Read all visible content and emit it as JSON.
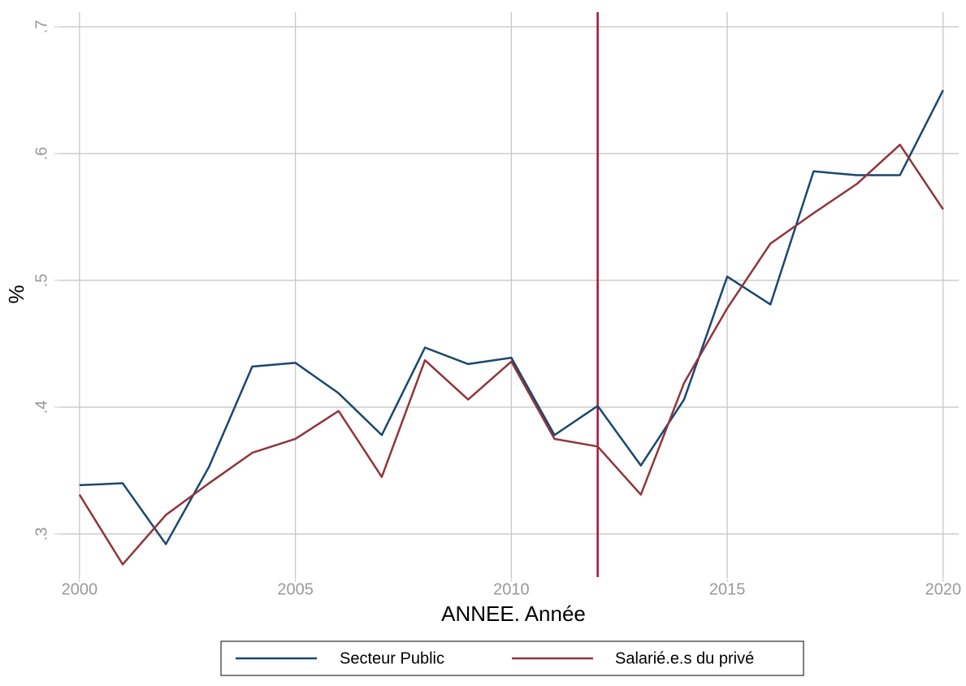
{
  "chart_data": {
    "type": "line",
    "x_label": "ANNEE. Année",
    "y_label": "%",
    "x": [
      2000,
      2001,
      2002,
      2003,
      2004,
      2005,
      2006,
      2007,
      2008,
      2009,
      2010,
      2011,
      2012,
      2013,
      2014,
      2015,
      2016,
      2017,
      2018,
      2019,
      2020
    ],
    "series": [
      {
        "name": "Secteur Public",
        "color": "#1a476f",
        "values": [
          0.3385,
          0.34,
          0.292,
          0.353,
          0.432,
          0.435,
          0.411,
          0.378,
          0.447,
          0.434,
          0.439,
          0.378,
          0.401,
          0.354,
          0.406,
          0.503,
          0.481,
          0.586,
          0.583,
          0.583,
          0.65
        ]
      },
      {
        "name": "Salarié.e.s du privé",
        "color": "#90353b",
        "values": [
          0.331,
          0.276,
          0.315,
          0.34,
          0.364,
          0.375,
          0.397,
          0.345,
          0.437,
          0.406,
          0.436,
          0.375,
          0.369,
          0.331,
          0.419,
          0.478,
          0.529,
          0.553,
          0.576,
          0.607,
          0.556
        ]
      }
    ],
    "vline": {
      "value": 2012,
      "color": "#a3123d"
    },
    "xlim": [
      1999.57,
      2020.36
    ],
    "xticks": [
      2000,
      2005,
      2010,
      2015,
      2020
    ],
    "ylim": [
      0.266,
      0.7115
    ],
    "yticks": [
      {
        "value": 0.3,
        "label": ".3"
      },
      {
        "value": 0.4,
        "label": ".4"
      },
      {
        "value": 0.5,
        "label": ".5"
      },
      {
        "value": 0.6,
        "label": ".6"
      },
      {
        "value": 0.7,
        "label": ".7"
      }
    ],
    "grid": true,
    "legend": "bottom"
  }
}
